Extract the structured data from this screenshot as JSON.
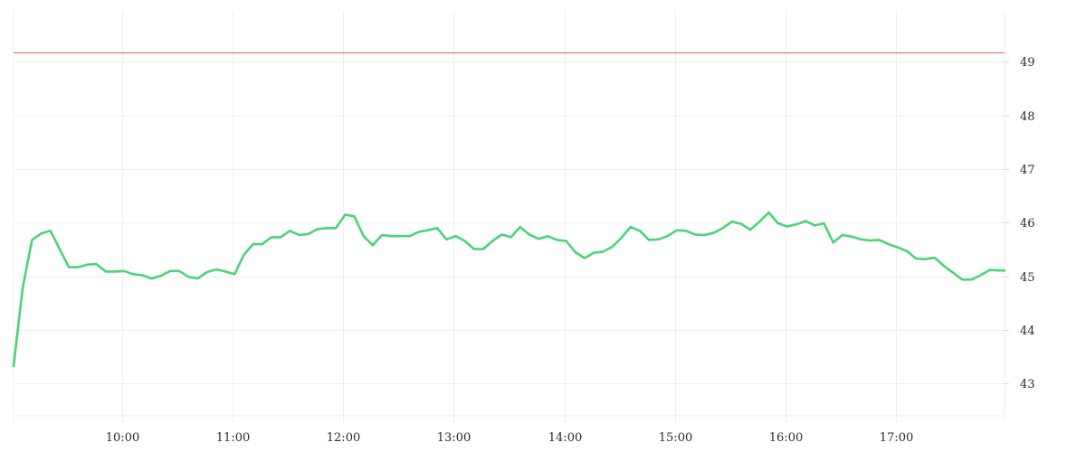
{
  "chart_data": {
    "type": "line",
    "title": "",
    "xlabel": "",
    "ylabel": "",
    "grid": true,
    "legend": "none",
    "y_axis_side": "right",
    "xlim": [
      "09:01",
      "17:59"
    ],
    "ylim": [
      42.4,
      49.95
    ],
    "x_tick_labels": [
      "10:00",
      "11:00",
      "12:00",
      "13:00",
      "14:00",
      "15:00",
      "16:00",
      "17:00"
    ],
    "y_tick_labels": [
      "43",
      "44",
      "45",
      "46",
      "47",
      "48",
      "49"
    ],
    "reference_line": {
      "y": 49.17,
      "color": "#e06060"
    },
    "series": [
      {
        "color": "#4cd27a",
        "x": [
          "09:01",
          "09:06",
          "09:11",
          "09:16",
          "09:21",
          "09:31",
          "09:36",
          "09:41",
          "09:46",
          "09:51",
          "09:56",
          "10:01",
          "10:06",
          "10:11",
          "10:16",
          "10:21",
          "10:26",
          "10:31",
          "10:36",
          "10:41",
          "10:46",
          "10:51",
          "10:56",
          "11:01",
          "11:06",
          "11:11",
          "11:16",
          "11:21",
          "11:26",
          "11:31",
          "11:36",
          "11:41",
          "11:46",
          "11:51",
          "11:56",
          "12:01",
          "12:06",
          "12:11",
          "12:16",
          "12:21",
          "12:26",
          "12:31",
          "12:36",
          "12:41",
          "12:46",
          "12:51",
          "12:56",
          "13:01",
          "13:06",
          "13:11",
          "13:16",
          "13:21",
          "13:26",
          "13:31",
          "13:36",
          "13:41",
          "13:46",
          "13:51",
          "13:56",
          "14:01",
          "14:06",
          "14:11",
          "14:16",
          "14:21",
          "14:26",
          "14:31",
          "14:36",
          "14:41",
          "14:46",
          "14:51",
          "14:56",
          "15:01",
          "15:06",
          "15:11",
          "15:16",
          "15:21",
          "15:26",
          "15:31",
          "15:36",
          "15:41",
          "15:46",
          "15:51",
          "15:56",
          "16:01",
          "16:06",
          "16:11",
          "16:16",
          "16:21",
          "16:26",
          "16:31",
          "16:36",
          "16:41",
          "16:46",
          "16:51",
          "16:56",
          "17:01",
          "17:06",
          "17:11",
          "17:16",
          "17:21",
          "17:26",
          "17:31",
          "17:36",
          "17:41",
          "17:46",
          "17:51",
          "17:56",
          "17:59"
        ],
        "values": [
          43.33,
          44.8,
          45.68,
          45.8,
          45.85,
          45.17,
          45.17,
          45.22,
          45.23,
          45.09,
          45.09,
          45.1,
          45.04,
          45.02,
          44.96,
          45.01,
          45.1,
          45.1,
          44.99,
          44.96,
          45.08,
          45.13,
          45.09,
          45.04,
          45.4,
          45.6,
          45.6,
          45.73,
          45.73,
          45.85,
          45.77,
          45.79,
          45.88,
          45.9,
          45.9,
          46.15,
          46.12,
          45.75,
          45.58,
          45.77,
          45.75,
          45.75,
          45.75,
          45.83,
          45.86,
          45.9,
          45.69,
          45.75,
          45.66,
          45.51,
          45.51,
          45.66,
          45.78,
          45.73,
          45.92,
          45.78,
          45.7,
          45.75,
          45.68,
          45.66,
          45.45,
          45.34,
          45.44,
          45.46,
          45.55,
          45.72,
          45.92,
          45.85,
          45.68,
          45.69,
          45.75,
          45.86,
          45.85,
          45.78,
          45.77,
          45.81,
          45.9,
          46.02,
          45.98,
          45.87,
          46.02,
          46.19,
          45.99,
          45.93,
          45.97,
          46.03,
          45.95,
          45.99,
          45.63,
          45.77,
          45.74,
          45.69,
          45.67,
          45.68,
          45.6,
          45.54,
          45.47,
          45.33,
          45.32,
          45.35,
          45.2,
          45.07,
          44.94,
          44.94,
          45.02,
          45.12,
          45.11,
          45.11
        ]
      }
    ]
  }
}
